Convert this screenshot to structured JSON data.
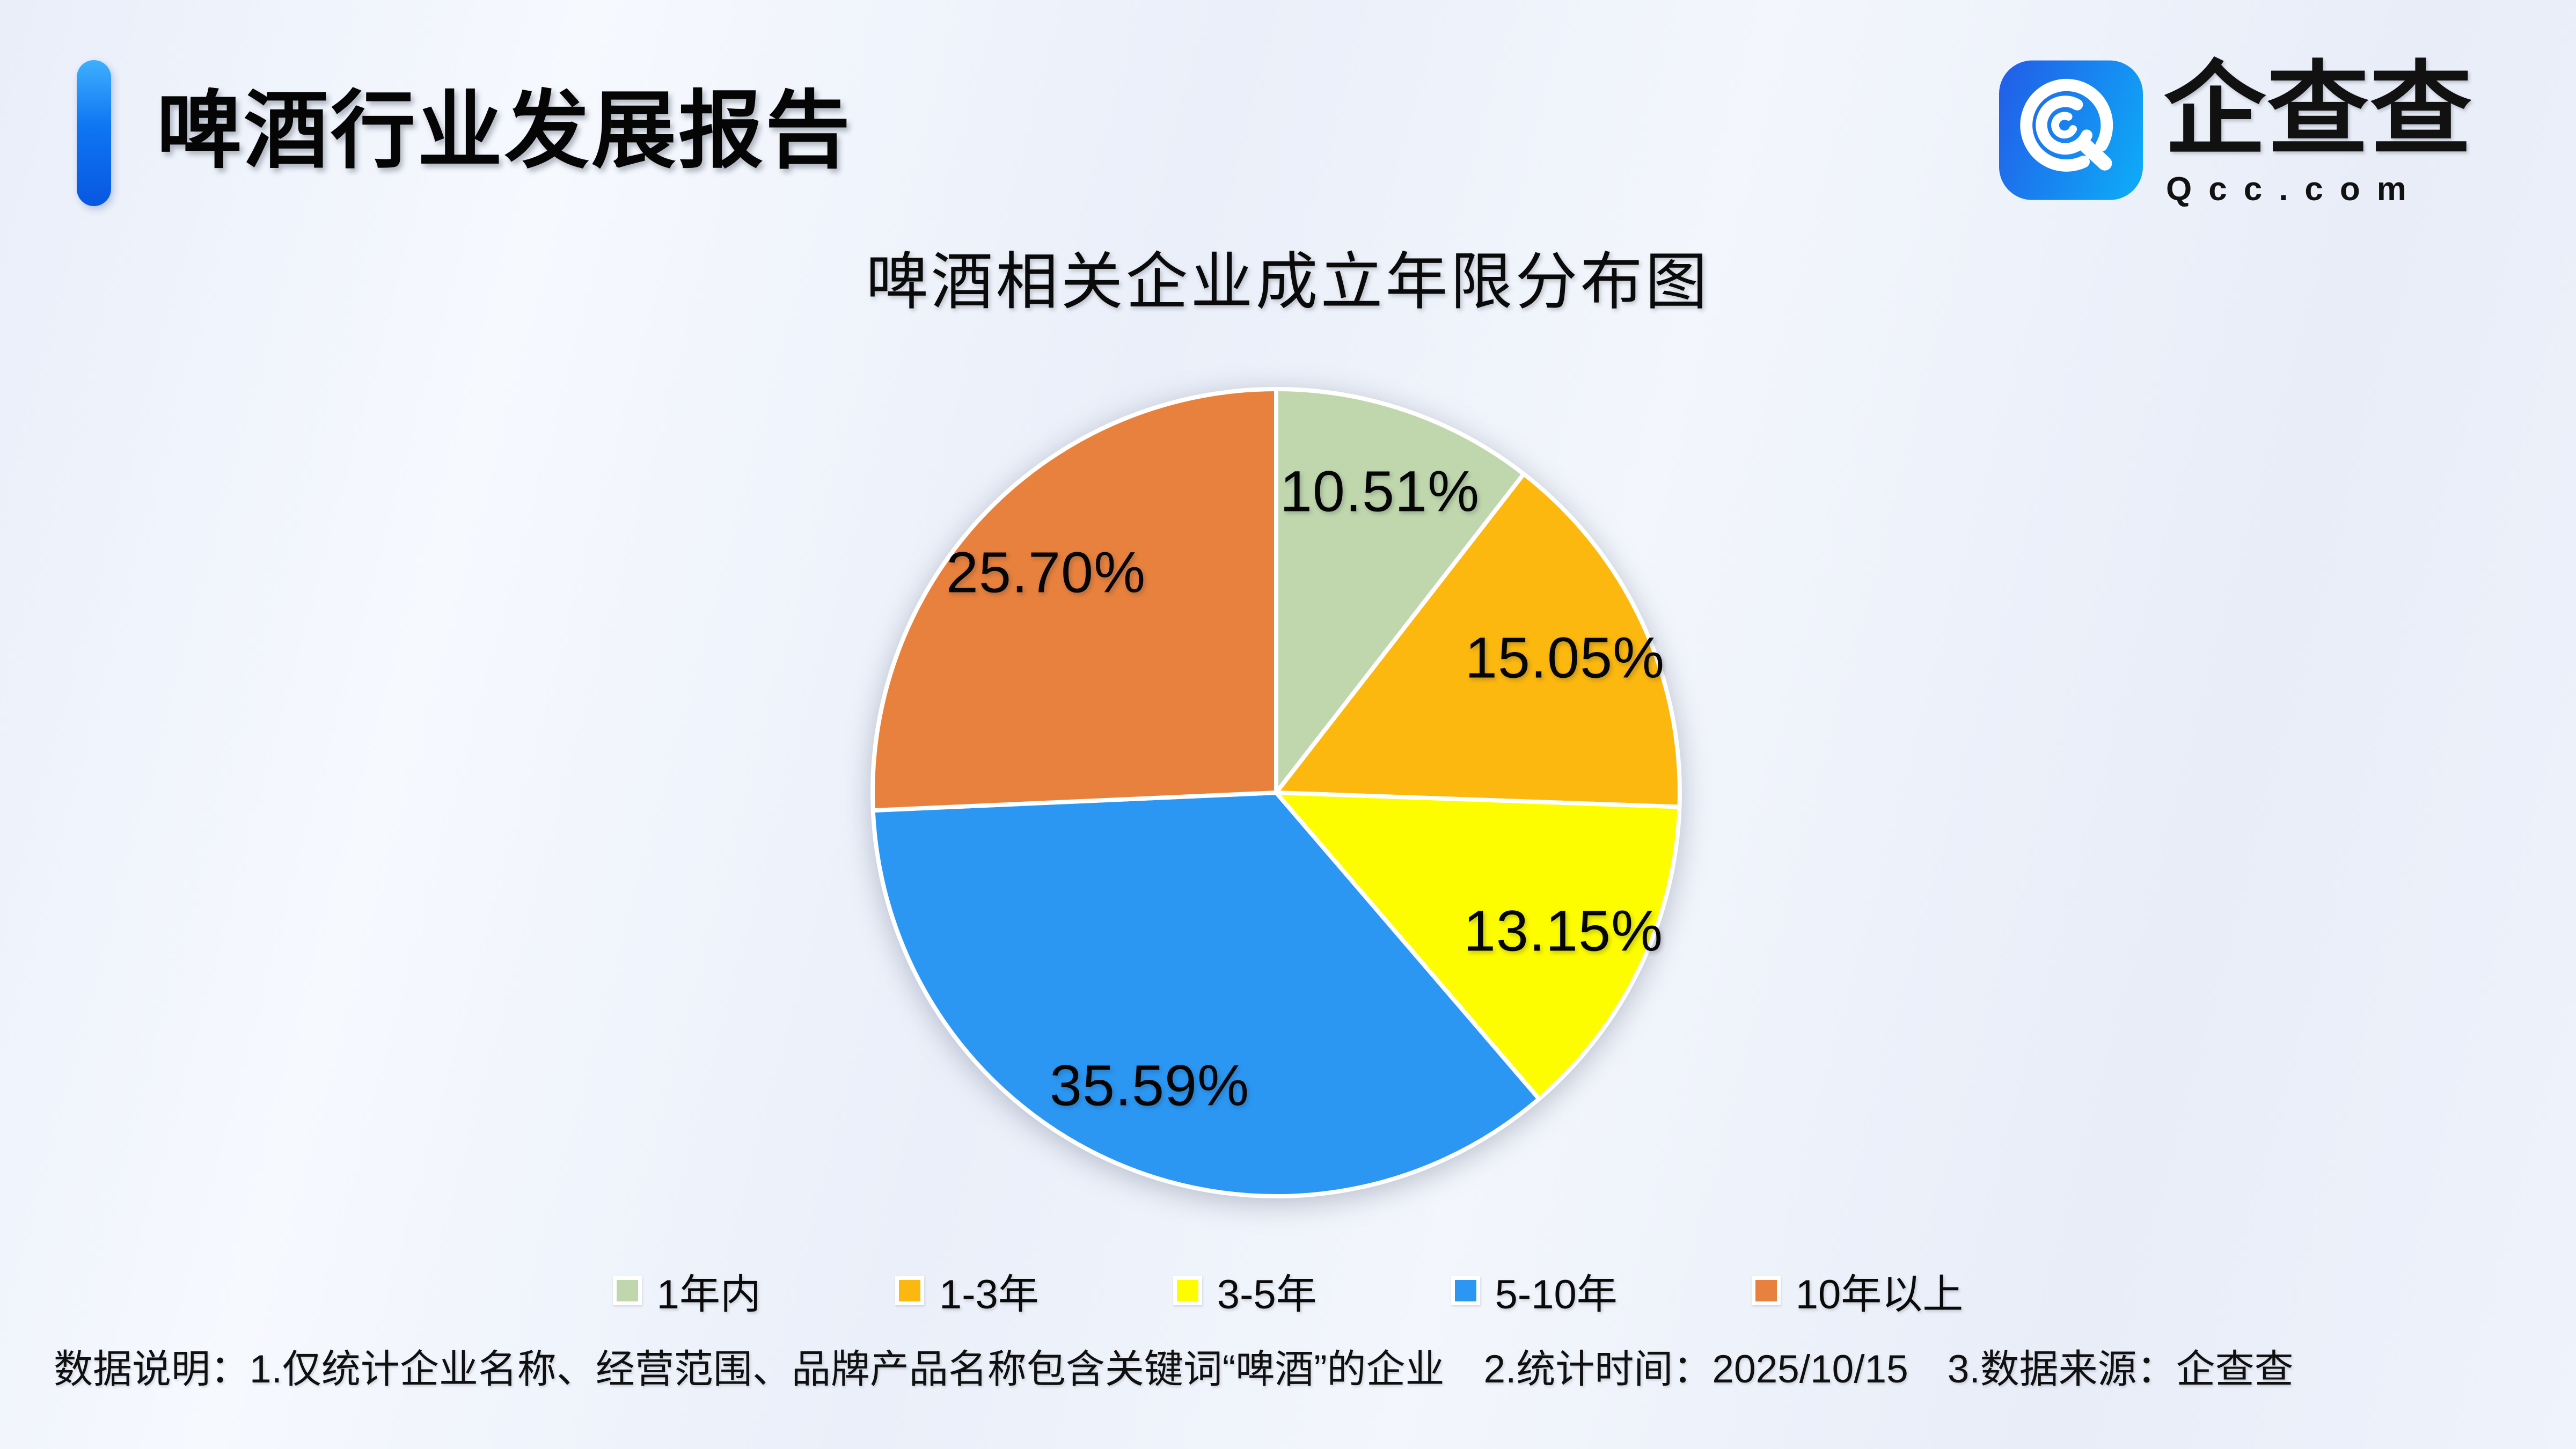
{
  "header": {
    "title": "啤酒行业发展报告",
    "logo": {
      "brand": "企查查",
      "domain": "Qcc.com",
      "icon": "qcc-logo-icon",
      "icon_gradient": [
        "#2162e9",
        "#0fa7f7"
      ]
    }
  },
  "chart_data": {
    "type": "pie",
    "title": "啤酒相关企业成立年限分布图",
    "value_unit": "percent",
    "label_format": "{value}%",
    "legend_position": "bottom",
    "direction": "clockwise",
    "start_angle_deg": 0,
    "series": [
      {
        "name": "1年内",
        "value": 10.51,
        "color": "#c0d7ad"
      },
      {
        "name": "1-3年",
        "value": 15.05,
        "color": "#fcb80e"
      },
      {
        "name": "3-5年",
        "value": 13.15,
        "color": "#fdfd00"
      },
      {
        "name": "5-10年",
        "value": 35.59,
        "color": "#2b97f3"
      },
      {
        "name": "10年以上",
        "value": 25.7,
        "color": "#e8813d"
      }
    ]
  },
  "footnote": "数据说明：1.仅统计企业名称、经营范围、品牌产品名称包含关键词“啤酒”的企业　2.统计时间：2025/10/15　3.数据来源：企查查"
}
